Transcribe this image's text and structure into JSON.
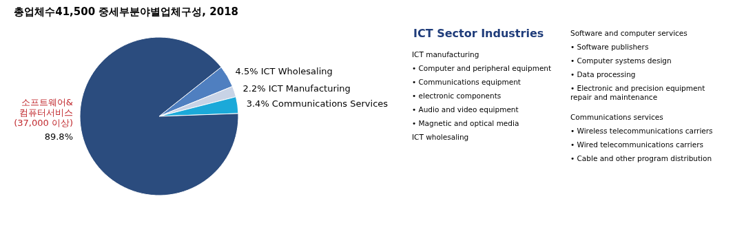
{
  "chart_data": [
    {
      "type": "pie",
      "title": "총업체수41,500 중세부분야별업체구성, 2018",
      "categories": [
        "ICT Wholesaling",
        "ICT Manufacturing",
        "Communications Services",
        "소프트웨어&\n컴퓨터서비스\n(37,000 이상)"
      ],
      "values": [
        4.5,
        2.2,
        3.4,
        89.8
      ],
      "value_labels": [
        "4.5%",
        "2.2%",
        "3.4%",
        "89.8%"
      ],
      "colors": [
        "#4f7fc0",
        "#c8d3e6",
        "#1ba9d9",
        "#2b4c7e"
      ]
    },
    {
      "type": "other",
      "title": "ICT Sector Industries",
      "annotations": [
        "ICT manufacturing",
        "• Computer and peripheral equipment",
        "• Communications equipment",
        "• electronic components",
        "• Audio and video equipment",
        "• Magnetic and optical media",
        "ICT wholesaling",
        "Software and computer services",
        "• Software publishers",
        "• Computer systems design",
        "• Data processing",
        "• Electronic and precision equipment\n   repair and maintenance",
        "Communications services",
        "• Wireless telecommunications carriers",
        "• Wired telecommunications carriers",
        "• Cable and other program distribution"
      ]
    }
  ]
}
